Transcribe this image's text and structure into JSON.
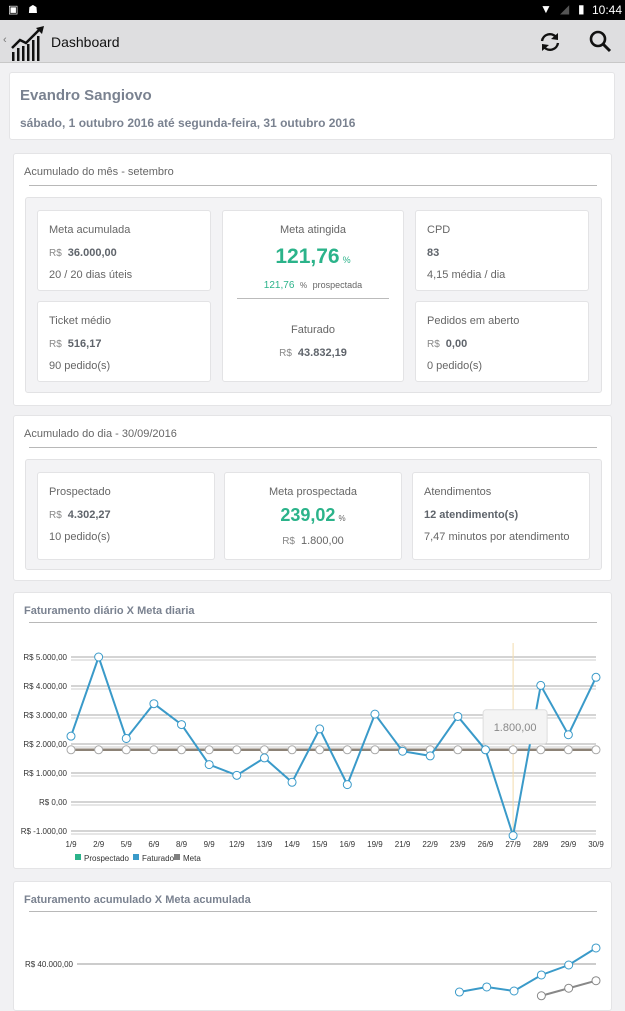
{
  "status_bar": {
    "time": "10:44"
  },
  "app_bar": {
    "title": "Dashboard",
    "icons": [
      "back-chevron",
      "chart-logo",
      "refresh-icon",
      "search-icon"
    ]
  },
  "header": {
    "user": "Evandro Sangiovo",
    "period": "sábado, 1 outubro 2016 até segunda-feira, 31 outubro 2016"
  },
  "month": {
    "title": "Acumulado do mês - setembro",
    "meta_acumulada": {
      "label": "Meta acumulada",
      "currency": "R$",
      "value": "36.000,00",
      "sub": "20 / 20 dias úteis"
    },
    "ticket_medio": {
      "label": "Ticket médio",
      "currency": "R$",
      "value": "516,17",
      "sub": "90 pedido(s)"
    },
    "meta_atingida": {
      "label": "Meta atingida",
      "value": "121,76",
      "unit": "%",
      "prospectada_value": "121,76",
      "prospectada_unit": "%",
      "prospectada_label": "prospectada",
      "faturado_label": "Faturado",
      "faturado_currency": "R$",
      "faturado_value": "43.832,19"
    },
    "cpd": {
      "label": "CPD",
      "value": "83",
      "sub": "4,15 média / dia"
    },
    "pedidos_aberto": {
      "label": "Pedidos em aberto",
      "currency": "R$",
      "value": "0,00",
      "sub": "0 pedido(s)"
    }
  },
  "day": {
    "title": "Acumulado do dia - 30/09/2016",
    "prospectado": {
      "label": "Prospectado",
      "currency": "R$",
      "value": "4.302,27",
      "sub": "10 pedido(s)"
    },
    "meta_prospectada": {
      "label": "Meta prospectada",
      "value": "239,02",
      "unit": "%",
      "currency": "R$",
      "meta": "1.800,00"
    },
    "atendimentos": {
      "label": "Atendimentos",
      "value": "12 atendimento(s)",
      "sub": "7,47 minutos por atendimento"
    }
  },
  "colors": {
    "accent_green": "#2bb38a",
    "faturado": "#3a9ac9",
    "meta": "#808080",
    "prospectado": "#2bb38a"
  },
  "chart_data": [
    {
      "type": "line",
      "title": "Faturamento diário X Meta diaria",
      "categories": [
        "1/9",
        "2/9",
        "5/9",
        "6/9",
        "8/9",
        "9/9",
        "12/9",
        "13/9",
        "14/9",
        "15/9",
        "16/9",
        "19/9",
        "21/9",
        "22/9",
        "23/9",
        "26/9",
        "27/9",
        "28/9",
        "29/9",
        "30/9"
      ],
      "yticks": [
        "R$ 5.000,00",
        "R$ 4.000,00",
        "R$ 3.000,00",
        "R$ 2.000,00",
        "R$ 1.000,00",
        "R$ 0,00",
        "R$ -1.000,00"
      ],
      "ylim": [
        -1000,
        5000
      ],
      "series": [
        {
          "name": "Faturado",
          "values": [
            2270,
            5000,
            2190,
            3390,
            2670,
            1290,
            920,
            1520,
            680,
            2520,
            600,
            3030,
            1750,
            1590,
            2950,
            1800,
            -1160,
            4020,
            2320,
            4300
          ]
        },
        {
          "name": "Meta",
          "values": [
            1800,
            1800,
            1800,
            1800,
            1800,
            1800,
            1800,
            1800,
            1800,
            1800,
            1800,
            1800,
            1800,
            1800,
            1800,
            1800,
            1800,
            1800,
            1800,
            1800
          ]
        }
      ],
      "legend": [
        "Prospectado",
        "Faturado",
        "Meta"
      ],
      "legend_position": "bottom-left",
      "tooltip": {
        "category": "27/9",
        "text": "1.800,00"
      }
    },
    {
      "type": "line",
      "title": "Faturamento acumulado X Meta acumulada",
      "yticks": [
        "R$ 40.000,00"
      ],
      "series": [
        {
          "name": "Faturado",
          "values_partial_last": [
            33300,
            34500,
            33540,
            37370,
            39760,
            43830
          ]
        },
        {
          "name": "Meta",
          "values_partial_last": [
            32400,
            34200,
            36000
          ]
        }
      ]
    }
  ]
}
